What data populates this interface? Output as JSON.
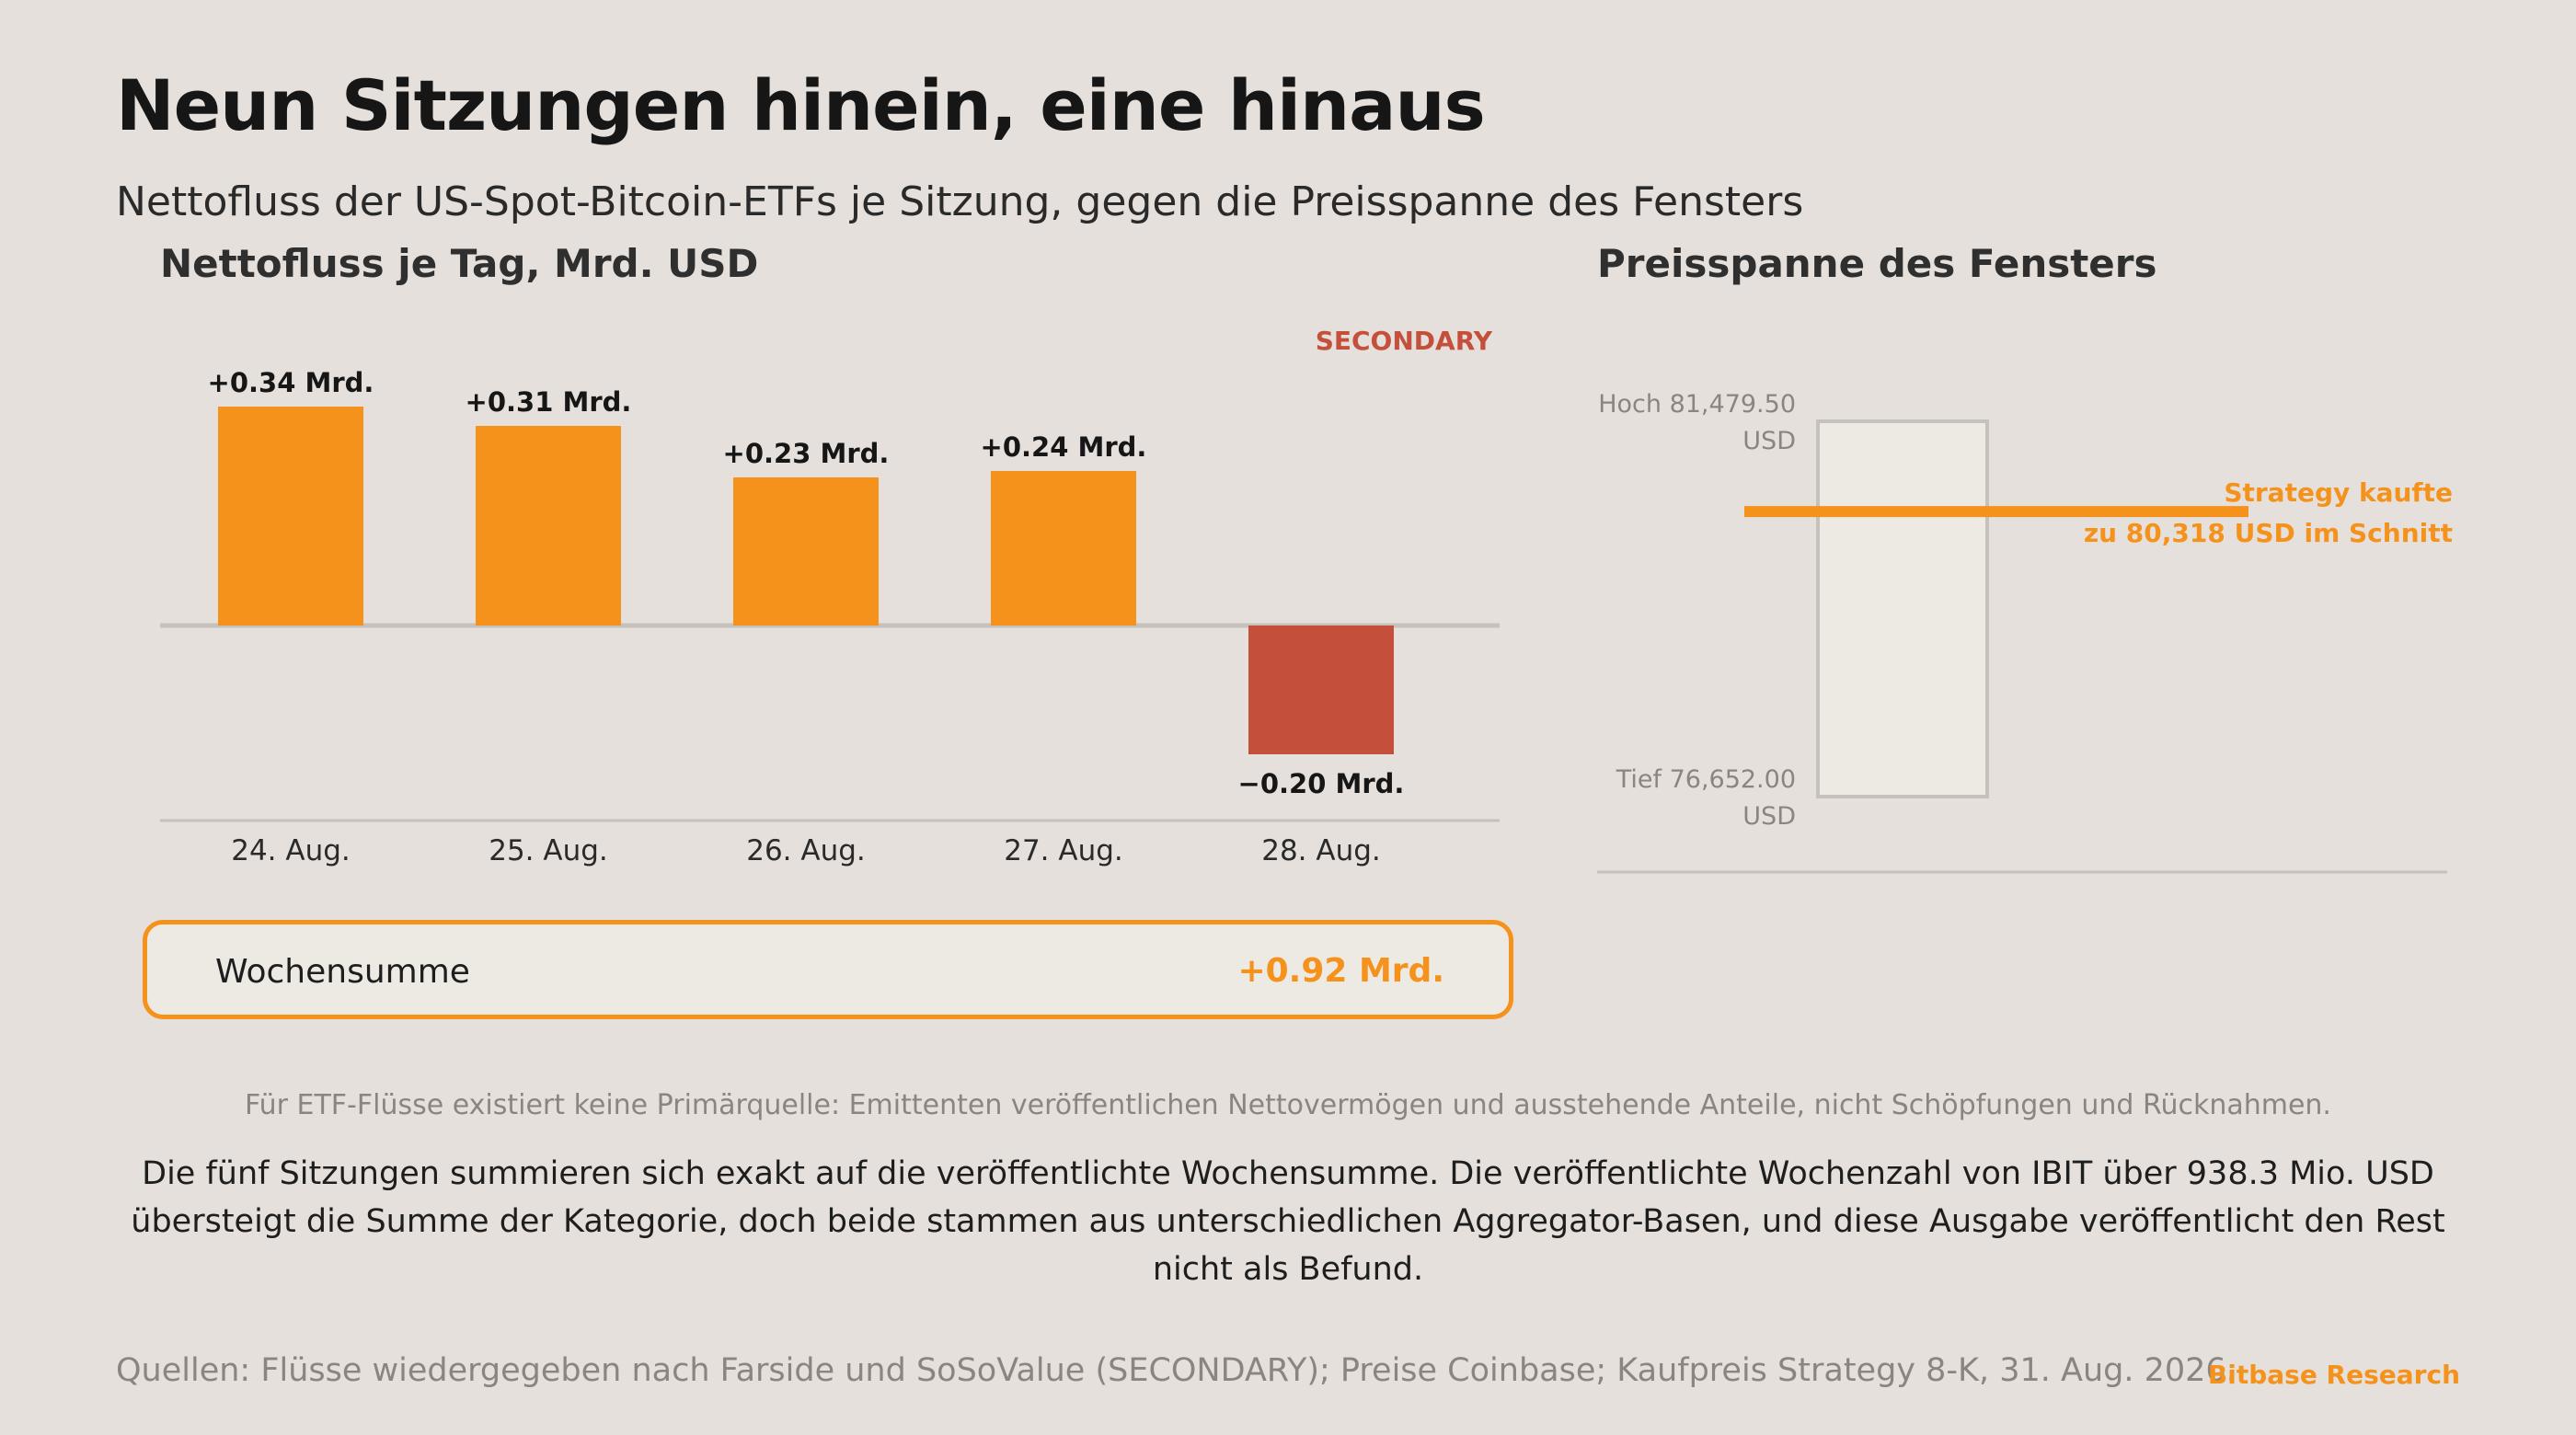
{
  "header": {
    "title": "Neun Sitzungen hinein, eine hinaus",
    "subtitle": "Nettofluss der US-Spot-Bitcoin-ETFs je Sitzung, gegen die Preisspanne des Fensters"
  },
  "bar_panel": {
    "title": "Nettofluss je Tag, Mrd. USD",
    "badge": "SECONDARY"
  },
  "range_panel": {
    "title": "Preisspanne des Fensters",
    "high_label": "Hoch 81,479.50",
    "high_unit": "USD",
    "low_label": "Tief 76,652.00",
    "low_unit": "USD",
    "marker_line1": "Strategy kaufte",
    "marker_line2": "zu 80,318 USD im Schnitt"
  },
  "summary": {
    "label": "Wochensumme",
    "value": "+0.92 Mrd."
  },
  "notes": {
    "caveat": "Für ETF-Flüsse existiert keine Primärquelle: Emittenten veröffentlichen Nettovermögen und ausstehende Anteile, nicht Schöpfungen und Rücknahmen.",
    "body": "Die fünf Sitzungen summieren sich exakt auf die veröffentlichte Wochensumme. Die veröffentlichte Wochenzahl von IBIT über 938.3 Mio. USD übersteigt die Summe der Kategorie, doch beide stammen aus unterschiedlichen Aggregator-Basen, und diese Ausgabe veröffentlicht den Rest nicht als Befund."
  },
  "footer": {
    "sources": "Quellen: Flüsse wiedergegeben nach Farside und SoSoValue (SECONDARY); Preise Coinbase; Kaufpreis Strategy 8-K, 31. Aug. 2026.",
    "brand": "Bitbase Research"
  },
  "colors": {
    "positive": "#f5921b",
    "negative": "#c4503c",
    "badge": "#c4503c",
    "accent": "#f5921b",
    "range_box_fill": "#ede9e3",
    "range_box_stroke": "#c6c1ba",
    "baseline": "#c6c1ba"
  },
  "chart_data": [
    {
      "type": "bar",
      "title": "Nettofluss je Tag, Mrd. USD",
      "categories": [
        "24. Aug.",
        "25. Aug.",
        "26. Aug.",
        "27. Aug.",
        "28. Aug."
      ],
      "values": [
        0.34,
        0.31,
        0.23,
        0.24,
        -0.2
      ],
      "data_labels": [
        "+0.34 Mrd.",
        "+0.31 Mrd.",
        "+0.23 Mrd.",
        "+0.24 Mrd.",
        "−0.20 Mrd."
      ],
      "ylim": [
        -0.2,
        0.34
      ],
      "grid": false,
      "annotation": "SECONDARY"
    },
    {
      "type": "range",
      "title": "Preisspanne des Fensters",
      "high": 81479.5,
      "low": 76652.0,
      "marker": 80318,
      "marker_label": [
        "Strategy kaufte",
        "zu 80,318 USD im Schnitt"
      ],
      "unit": "USD"
    }
  ]
}
